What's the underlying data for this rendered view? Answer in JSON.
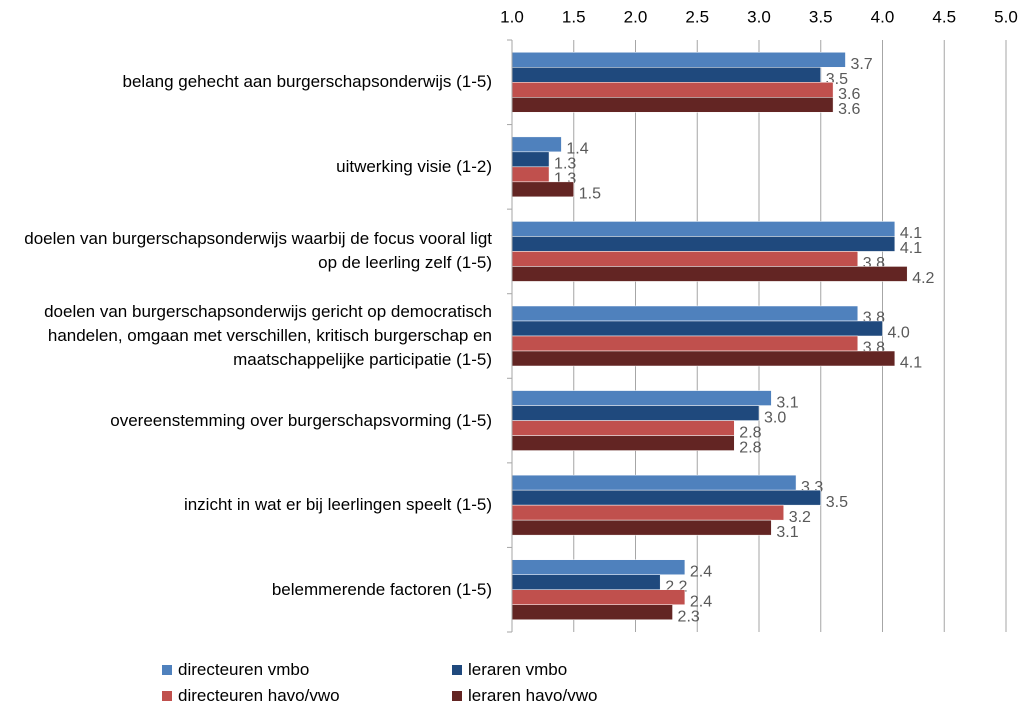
{
  "chart_data": {
    "type": "barh",
    "categories": [
      "belang gehecht aan burgerschapsonderwijs (1-5)",
      "uitwerking visie (1-2)",
      "doelen van burgerschapsonderwijs waarbij de focus vooral ligt op de leerling zelf (1-5)",
      "doelen van burgerschapsonderwijs gericht op democratisch handelen, omgaan met verschillen, kritisch burgerschap en maatschappelijke participatie (1-5)",
      "overeenstemming over burgerschapsvorming (1-5)",
      "inzicht in wat er bij leerlingen speelt (1-5)",
      "belemmerende factoren (1-5)"
    ],
    "series": [
      {
        "name": "directeuren vmbo",
        "color": "#4f81bd",
        "values": [
          3.7,
          1.4,
          4.1,
          3.8,
          3.1,
          3.3,
          2.4
        ],
        "value_labels": [
          "3.7",
          "1.4",
          "4.1",
          "3.8",
          "3.1",
          "3.3",
          "2.4"
        ]
      },
      {
        "name": "leraren vmbo",
        "color": "#1f497d",
        "values": [
          3.5,
          1.3,
          4.1,
          4,
          3,
          3.5,
          2.2
        ],
        "value_labels": [
          "3.5",
          "1.3",
          "4.1",
          "4.0",
          "3.0",
          "3.5",
          "2.2"
        ]
      },
      {
        "name": "directeuren havo/vwo",
        "color": "#c0504d",
        "values": [
          3.6,
          1.3,
          3.8,
          3.8,
          2.8,
          3.2,
          2.4
        ],
        "value_labels": [
          "3.6",
          "1.3",
          "3.8",
          "3.8",
          "2.8",
          "3.2",
          "2.4"
        ]
      },
      {
        "name": "leraren havo/vwo",
        "color": "#632523",
        "values": [
          3.6,
          1.5,
          4.2,
          4.1,
          2.8,
          3.1,
          2.3
        ],
        "value_labels": [
          "3.6",
          "1.5",
          "4.2",
          "4.1",
          "2.8",
          "3.1",
          "2.3"
        ]
      }
    ],
    "xlim": [
      1,
      5
    ],
    "xticks": [
      {
        "value": 1,
        "label": "1.0"
      },
      1.5,
      {
        "value": 2,
        "label": "2.0"
      },
      2.5,
      {
        "value": 3,
        "label": "3.0"
      },
      3.5,
      {
        "value": 4,
        "label": "4.0"
      },
      4.5,
      {
        "value": 5,
        "label": "5.0"
      }
    ],
    "grid": true,
    "legend": "bottom"
  }
}
